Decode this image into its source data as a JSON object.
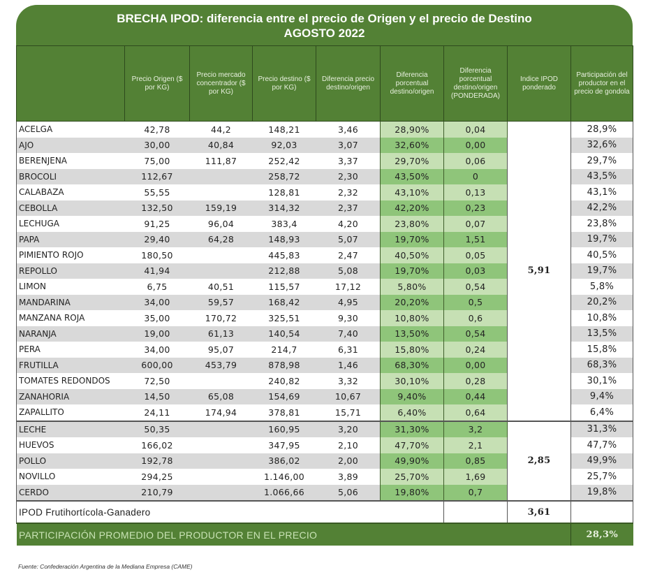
{
  "title": {
    "line1": "BRECHA IPOD: diferencia entre el precio de Origen y el precio de Destino",
    "line2": "AGOSTO 2022"
  },
  "columns": [
    "",
    "Precio Origen ($ por KG)",
    "Precio mercado concentrador ($ por KG)",
    "Precio destino ($ por KG)",
    "Diferencia precio destino/origen",
    "Diferencia porcentual destino/origen",
    "Diferencia porcentual destino/origen (PONDERADA)",
    "Indice IPOD ponderado",
    "Participación del productor en el precio de gondola"
  ],
  "groups": [
    {
      "ipod": "5,91",
      "rows": [
        {
          "name": "ACELGA",
          "origen": "42,78",
          "mercado": "44,2",
          "destino": "148,21",
          "dif": "3,46",
          "pct": "28,90%",
          "pond": "0,04",
          "part": "28,9%"
        },
        {
          "name": "AJO",
          "origen": "30,00",
          "mercado": "40,84",
          "destino": "92,03",
          "dif": "3,07",
          "pct": "32,60%",
          "pond": "0,00",
          "part": "32,6%"
        },
        {
          "name": "BERENJENA",
          "origen": "75,00",
          "mercado": "111,87",
          "destino": "252,42",
          "dif": "3,37",
          "pct": "29,70%",
          "pond": "0,06",
          "part": "29,7%"
        },
        {
          "name": "BROCOLI",
          "origen": "112,67",
          "mercado": "",
          "destino": "258,72",
          "dif": "2,30",
          "pct": "43,50%",
          "pond": "0",
          "part": "43,5%"
        },
        {
          "name": "CALABAZA",
          "origen": "55,55",
          "mercado": "",
          "destino": "128,81",
          "dif": "2,32",
          "pct": "43,10%",
          "pond": "0,13",
          "part": "43,1%"
        },
        {
          "name": "CEBOLLA",
          "origen": "132,50",
          "mercado": "159,19",
          "destino": "314,32",
          "dif": "2,37",
          "pct": "42,20%",
          "pond": "0,23",
          "part": "42,2%"
        },
        {
          "name": "LECHUGA",
          "origen": "91,25",
          "mercado": "96,04",
          "destino": "383,4",
          "dif": "4,20",
          "pct": "23,80%",
          "pond": "0,07",
          "part": "23,8%"
        },
        {
          "name": "PAPA",
          "origen": "29,40",
          "mercado": "64,28",
          "destino": "148,93",
          "dif": "5,07",
          "pct": "19,70%",
          "pond": "1,51",
          "part": "19,7%"
        },
        {
          "name": "PIMIENTO ROJO",
          "origen": "180,50",
          "mercado": "",
          "destino": "445,83",
          "dif": "2,47",
          "pct": "40,50%",
          "pond": "0,05",
          "part": "40,5%"
        },
        {
          "name": "REPOLLO",
          "origen": "41,94",
          "mercado": "",
          "destino": "212,88",
          "dif": "5,08",
          "pct": "19,70%",
          "pond": "0,03",
          "part": "19,7%"
        },
        {
          "name": "LIMON",
          "origen": "6,75",
          "mercado": "40,51",
          "destino": "115,57",
          "dif": "17,12",
          "pct": "5,80%",
          "pond": "0,54",
          "part": "5,8%"
        },
        {
          "name": "MANDARINA",
          "origen": "34,00",
          "mercado": "59,57",
          "destino": "168,42",
          "dif": "4,95",
          "pct": "20,20%",
          "pond": "0,5",
          "part": "20,2%"
        },
        {
          "name": "MANZANA ROJA",
          "origen": "35,00",
          "mercado": "170,72",
          "destino": "325,51",
          "dif": "9,30",
          "pct": "10,80%",
          "pond": "0,6",
          "part": "10,8%"
        },
        {
          "name": "NARANJA",
          "origen": "19,00",
          "mercado": "61,13",
          "destino": "140,54",
          "dif": "7,40",
          "pct": "13,50%",
          "pond": "0,54",
          "part": "13,5%"
        },
        {
          "name": "PERA",
          "origen": "34,00",
          "mercado": "95,07",
          "destino": "214,7",
          "dif": "6,31",
          "pct": "15,80%",
          "pond": "0,24",
          "part": "15,8%"
        },
        {
          "name": "FRUTILLA",
          "origen": "600,00",
          "mercado": "453,79",
          "destino": "878,98",
          "dif": "1,46",
          "pct": "68,30%",
          "pond": "0,00",
          "part": "68,3%"
        },
        {
          "name": "TOMATES REDONDOS",
          "origen": "72,50",
          "mercado": "",
          "destino": "240,82",
          "dif": "3,32",
          "pct": "30,10%",
          "pond": "0,28",
          "part": "30,1%"
        },
        {
          "name": "ZANAHORIA",
          "origen": "14,50",
          "mercado": "65,08",
          "destino": "154,69",
          "dif": "10,67",
          "pct": "9,40%",
          "pond": "0,44",
          "part": "9,4%"
        },
        {
          "name": "ZAPALLITO",
          "origen": "24,11",
          "mercado": "174,94",
          "destino": "378,81",
          "dif": "15,71",
          "pct": "6,40%",
          "pond": "0,64",
          "part": "6,4%"
        }
      ]
    },
    {
      "ipod": "2,85",
      "rows": [
        {
          "name": "LECHE",
          "origen": "50,35",
          "mercado": "",
          "destino": "160,95",
          "dif": "3,20",
          "pct": "31,30%",
          "pond": "3,2",
          "part": "31,3%"
        },
        {
          "name": "HUEVOS",
          "origen": "166,02",
          "mercado": "",
          "destino": "347,95",
          "dif": "2,10",
          "pct": "47,70%",
          "pond": "2,1",
          "part": "47,7%"
        },
        {
          "name": "POLLO",
          "origen": "192,78",
          "mercado": "",
          "destino": "386,02",
          "dif": "2,00",
          "pct": "49,90%",
          "pond": "0,85",
          "part": "49,9%"
        },
        {
          "name": "NOVILLO",
          "origen": "294,25",
          "mercado": "",
          "destino": "1.146,00",
          "dif": "3,89",
          "pct": "25,70%",
          "pond": "1,69",
          "part": "25,7%"
        },
        {
          "name": "CERDO",
          "origen": "210,79",
          "mercado": "",
          "destino": "1.066,66",
          "dif": "5,06",
          "pct": "19,80%",
          "pond": "0,7",
          "part": "19,8%"
        }
      ]
    }
  ],
  "summary": {
    "ipod_label": "IPOD Frutihortícola-Ganadero",
    "ipod_value": "3,61",
    "avg_label": "PARTICIPACIÓN PROMEDIO DEL PRODUCTOR EN EL PRECIO",
    "avg_value": "28,3%"
  },
  "source": "Fuente: Confederación Argentina de la Mediana Empresa (CAME)",
  "colors": {
    "header_green": "#538135",
    "light_green": "#c6e0b4",
    "mid_green": "#8fc57a",
    "zebra_gray": "#d9d9d9"
  }
}
